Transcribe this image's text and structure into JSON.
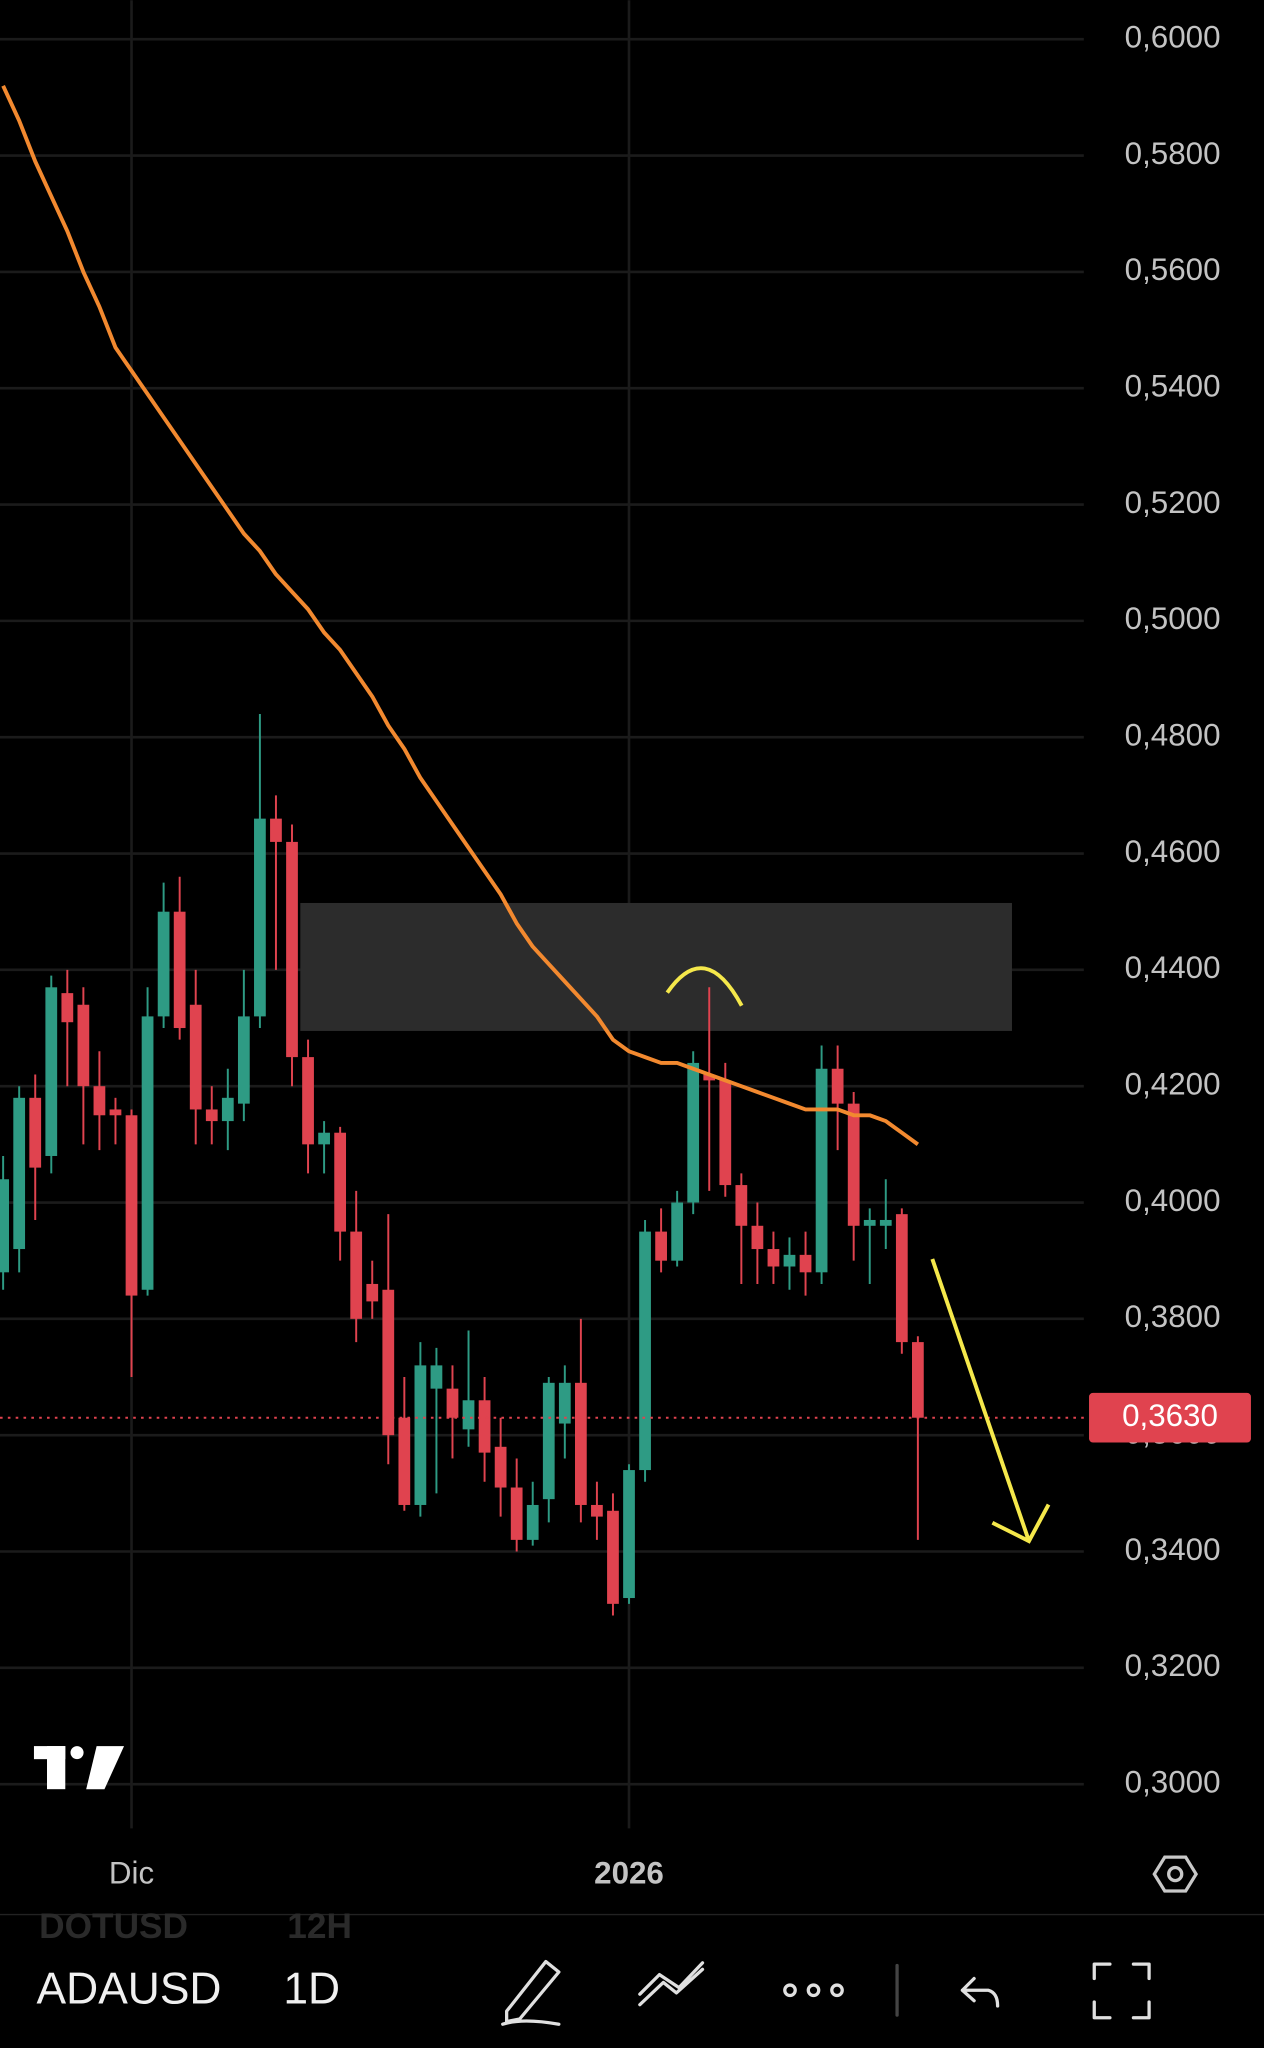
{
  "chart_data": {
    "type": "candlestick",
    "symbol": "ADAUSD",
    "interval": "1D",
    "watchlist": [
      {
        "symbol": "DOTUSD",
        "interval": "12H"
      }
    ],
    "categories": [
      null,
      null,
      null,
      null,
      null,
      null,
      null,
      null,
      "Dic",
      null,
      null,
      null,
      null,
      null,
      null,
      null,
      null,
      null,
      null,
      null,
      null,
      null,
      null,
      null,
      null,
      null,
      null,
      null,
      null,
      null,
      null,
      null,
      null,
      null,
      null,
      null,
      null,
      null,
      null,
      "2026",
      null,
      null,
      null,
      null,
      null,
      null,
      null,
      null,
      null,
      null,
      null,
      null,
      null,
      null,
      null,
      null,
      null,
      null
    ],
    "open": [
      0.388,
      0.392,
      0.418,
      0.408,
      0.436,
      0.434,
      0.42,
      0.416,
      0.415,
      0.385,
      0.432,
      0.45,
      0.434,
      0.416,
      0.414,
      0.417,
      0.432,
      0.466,
      0.462,
      0.425,
      0.41,
      0.412,
      0.395,
      0.386,
      0.385,
      0.363,
      0.348,
      0.368,
      0.368,
      0.361,
      0.366,
      0.358,
      0.351,
      0.342,
      0.349,
      0.362,
      0.369,
      0.348,
      0.347,
      0.332,
      0.354,
      0.395,
      0.39,
      0.4,
      0.422,
      0.421,
      0.403,
      0.396,
      0.392,
      0.389,
      0.391,
      0.388,
      0.423,
      0.417,
      0.396,
      0.396,
      0.398,
      0.376
    ],
    "high": [
      0.408,
      0.42,
      0.422,
      0.439,
      0.44,
      0.437,
      0.426,
      0.418,
      0.416,
      0.437,
      0.455,
      0.456,
      0.44,
      0.42,
      0.423,
      0.44,
      0.484,
      0.47,
      0.465,
      0.428,
      0.414,
      0.413,
      0.402,
      0.39,
      0.398,
      0.37,
      0.376,
      0.375,
      0.372,
      0.378,
      0.37,
      0.363,
      0.356,
      0.352,
      0.37,
      0.372,
      0.38,
      0.352,
      0.35,
      0.355,
      0.397,
      0.399,
      0.402,
      0.426,
      0.437,
      0.424,
      0.405,
      0.4,
      0.395,
      0.394,
      0.395,
      0.427,
      0.427,
      0.419,
      0.399,
      0.404,
      0.399,
      0.377
    ],
    "low": [
      0.385,
      0.388,
      0.397,
      0.405,
      0.42,
      0.41,
      0.409,
      0.41,
      0.37,
      0.384,
      0.43,
      0.428,
      0.41,
      0.41,
      0.409,
      0.414,
      0.43,
      0.44,
      0.42,
      0.405,
      0.405,
      0.39,
      0.376,
      0.38,
      0.355,
      0.347,
      0.346,
      0.35,
      0.356,
      0.358,
      0.352,
      0.346,
      0.34,
      0.341,
      0.345,
      0.356,
      0.345,
      0.342,
      0.329,
      0.331,
      0.352,
      0.388,
      0.389,
      0.398,
      0.402,
      0.401,
      0.386,
      0.386,
      0.386,
      0.385,
      0.384,
      0.386,
      0.409,
      0.39,
      0.386,
      0.392,
      0.374,
      0.342
    ],
    "close": [
      0.404,
      0.418,
      0.406,
      0.437,
      0.431,
      0.42,
      0.415,
      0.415,
      0.384,
      0.432,
      0.45,
      0.43,
      0.416,
      0.414,
      0.418,
      0.432,
      0.466,
      0.462,
      0.425,
      0.41,
      0.412,
      0.395,
      0.38,
      0.383,
      0.36,
      0.348,
      0.372,
      0.372,
      0.363,
      0.366,
      0.357,
      0.351,
      0.342,
      0.348,
      0.369,
      0.369,
      0.348,
      0.346,
      0.331,
      0.354,
      0.395,
      0.39,
      0.4,
      0.424,
      0.421,
      0.403,
      0.396,
      0.392,
      0.389,
      0.391,
      0.388,
      0.423,
      0.417,
      0.396,
      0.397,
      0.397,
      0.376,
      0.363
    ],
    "up_color": "#2e9b84",
    "down_color": "#e0434f",
    "ma": [
      0.592,
      0.586,
      0.579,
      0.573,
      0.567,
      0.56,
      0.554,
      0.547,
      0.543,
      0.539,
      0.535,
      0.531,
      0.527,
      0.523,
      0.519,
      0.515,
      0.512,
      0.508,
      0.505,
      0.502,
      0.498,
      0.495,
      0.491,
      0.487,
      0.482,
      0.478,
      0.473,
      0.469,
      0.465,
      0.461,
      0.457,
      0.453,
      0.448,
      0.444,
      0.441,
      0.438,
      0.435,
      0.432,
      0.428,
      0.426,
      0.425,
      0.424,
      0.424,
      0.423,
      0.422,
      0.421,
      0.42,
      0.419,
      0.418,
      0.417,
      0.416,
      0.416,
      0.416,
      0.415,
      0.415,
      0.414,
      0.412,
      0.41
    ],
    "ma_color": "#f2892f",
    "zone": [
      0.4295,
      0.4515
    ],
    "last_price": {
      "value": 0.363,
      "label": "0,3630"
    },
    "ylim": [
      0.2924,
      0.6067
    ],
    "yticks": [
      {
        "value": 0.3,
        "label": "0,3000"
      },
      {
        "value": 0.32,
        "label": "0,3200"
      },
      {
        "value": 0.34,
        "label": "0,3400"
      },
      {
        "value": 0.36,
        "label": "0,3600"
      },
      {
        "value": 0.38,
        "label": "0,3800"
      },
      {
        "value": 0.4,
        "label": "0,4000"
      },
      {
        "value": 0.42,
        "label": "0,4200"
      },
      {
        "value": 0.44,
        "label": "0,4400"
      },
      {
        "value": 0.46,
        "label": "0,4600"
      },
      {
        "value": 0.48,
        "label": "0,4800"
      },
      {
        "value": 0.5,
        "label": "0,5000"
      },
      {
        "value": 0.52,
        "label": "0,5200"
      },
      {
        "value": 0.54,
        "label": "0,5400"
      },
      {
        "value": 0.56,
        "label": "0,5600"
      },
      {
        "value": 0.58,
        "label": "0,5800"
      },
      {
        "value": 0.6,
        "label": "0,6000"
      }
    ],
    "grid": true
  }
}
